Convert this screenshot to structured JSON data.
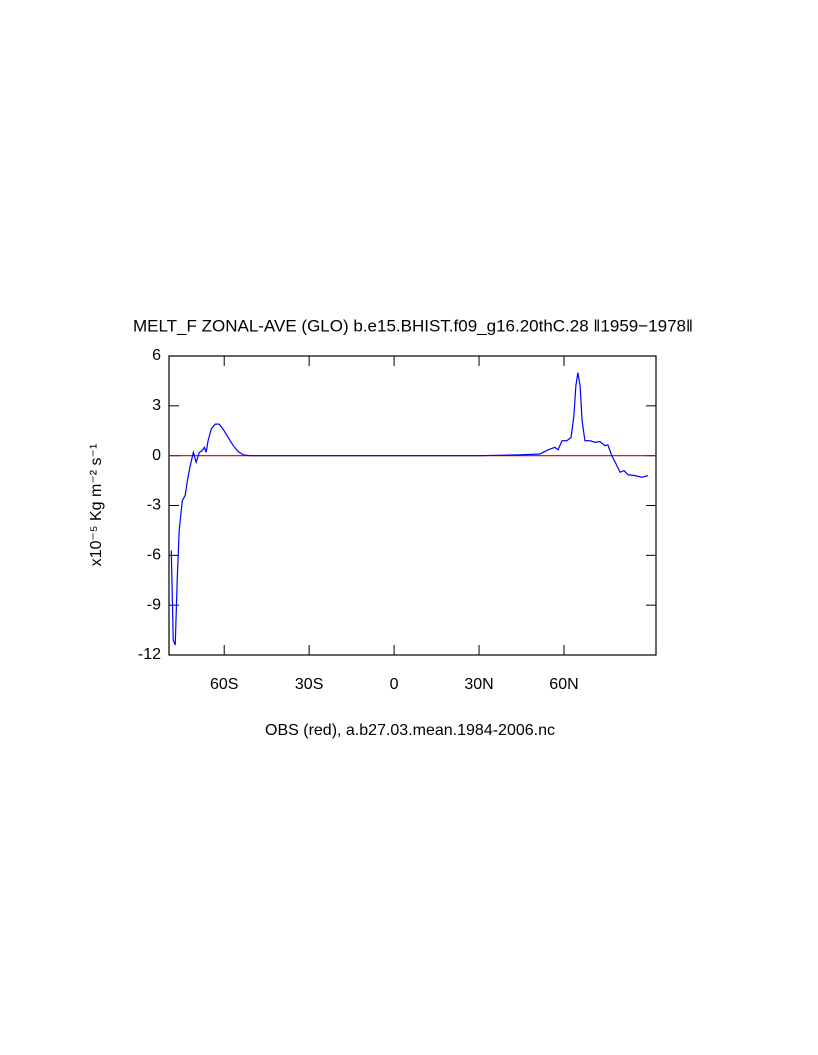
{
  "chart_data": {
    "type": "line",
    "title": "MELT_F ZONAL-AVE (GLO) b.e15.BHIST.f09_g16.20thC.28 ‖1959−1978‖",
    "y_label": "x10⁻⁵ Kg m⁻² s⁻¹",
    "x_label": "OBS (red), a.b27.03.mean.1984-2006.nc",
    "xlim": [
      -79.5,
      92.5
    ],
    "ylim": [
      -12,
      6
    ],
    "xticks": [
      {
        "value": -60,
        "label": "60S"
      },
      {
        "value": -30,
        "label": "30S"
      },
      0,
      {
        "value": 30,
        "label": "30N"
      },
      {
        "value": 60,
        "label": "60N"
      }
    ],
    "yticks": [
      6,
      3,
      0,
      -3,
      -6,
      -9,
      -12
    ],
    "series": [
      {
        "color": "#0000ff",
        "x": [
          -78.7,
          -78,
          -77.3,
          -76.6,
          -75.9,
          -74.8,
          -73.8,
          -73,
          -72,
          -70.9,
          -69.9,
          -68.8,
          -67.8,
          -67,
          -66.4,
          -65.7,
          -64.6,
          -63.2,
          -61.8,
          -60.4,
          -58.6,
          -56.8,
          -55.1,
          -53.3,
          -50.8,
          -30,
          0,
          30,
          44.5,
          51.5,
          54.4,
          56.8,
          57.9,
          59.3,
          61,
          62.5,
          63.5,
          64.2,
          64.9,
          65.7,
          66.4,
          67.4,
          69.2,
          71,
          72.7,
          74.5,
          75.5,
          76.9,
          78.4,
          79.8,
          81.2,
          82.6,
          85.1,
          87.5,
          89.7
        ],
        "values": [
          -5.7,
          -11.1,
          -11.4,
          -7.5,
          -4.5,
          -2.7,
          -2.4,
          -1.5,
          -0.6,
          0.2,
          -0.4,
          0.2,
          0.3,
          0.5,
          0.2,
          0.9,
          1.6,
          1.9,
          1.9,
          1.6,
          1.1,
          0.6,
          0.25,
          0.05,
          0,
          0,
          0,
          0,
          0.05,
          0.1,
          0.35,
          0.5,
          0.35,
          0.9,
          0.9,
          1.1,
          2.4,
          4.2,
          5,
          4.2,
          2.1,
          0.9,
          0.9,
          0.8,
          0.85,
          0.6,
          0.65,
          0,
          -0.5,
          -1.0,
          -0.9,
          -1.15,
          -1.2,
          -1.3,
          -1.2
        ]
      },
      {
        "color": "#cc0000",
        "x": [
          -79.5,
          92.5
        ],
        "values": [
          0,
          0
        ]
      }
    ]
  }
}
